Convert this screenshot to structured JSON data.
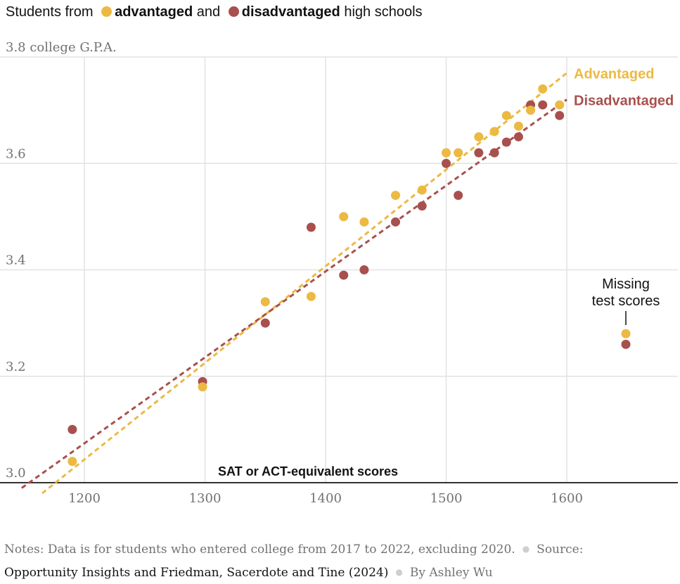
{
  "legend": {
    "prefix": "Students from",
    "adv_label": "advantaged",
    "mid": "and",
    "dis_label": "disadvantaged",
    "suffix": "high schools"
  },
  "notes": {
    "text": "Notes: Data is for students who entered college from 2017 to 2022, excluding 2020.",
    "source_label": "Source:",
    "source": "Opportunity Insights and Friedman, Sacerdote and Tine (2024)",
    "byline": "By Ashley Wu"
  },
  "colors": {
    "advantaged": "#ECB942",
    "disadvantaged": "#A8504E",
    "grid": "#e2e2e2",
    "axis": "#333333",
    "tick": "#727272"
  },
  "chart_data": {
    "type": "scatter",
    "xlabel": "SAT or ACT-equivalent scores",
    "ylabel": "college G.P.A.",
    "xlim": [
      1130,
      1690
    ],
    "ylim": [
      2.98,
      3.8
    ],
    "x_ticks": [
      1200,
      1300,
      1400,
      1500,
      1600
    ],
    "y_ticks": [
      3.0,
      3.2,
      3.4,
      3.6,
      3.8
    ],
    "grid": true,
    "series": [
      {
        "name": "Advantaged",
        "color": "#ECB942",
        "x": [
          1190,
          1298,
          1350,
          1388,
          1415,
          1432,
          1458,
          1480,
          1500,
          1510,
          1527,
          1540,
          1550,
          1560,
          1570,
          1580,
          1594
        ],
        "y": [
          3.04,
          3.18,
          3.34,
          3.35,
          3.5,
          3.49,
          3.54,
          3.55,
          3.62,
          3.62,
          3.65,
          3.66,
          3.69,
          3.67,
          3.7,
          3.74,
          3.71
        ],
        "trend": {
          "x": [
            1165,
            1600
          ],
          "y": [
            2.98,
            3.77
          ]
        }
      },
      {
        "name": "Disadvantaged",
        "color": "#A8504E",
        "x": [
          1190,
          1298,
          1350,
          1388,
          1415,
          1432,
          1458,
          1480,
          1500,
          1510,
          1527,
          1540,
          1550,
          1560,
          1570,
          1580,
          1594
        ],
        "y": [
          3.1,
          3.19,
          3.3,
          3.48,
          3.39,
          3.4,
          3.49,
          3.52,
          3.6,
          3.54,
          3.62,
          3.62,
          3.64,
          3.65,
          3.71,
          3.71,
          3.69
        ],
        "trend": {
          "x": [
            1148,
            1600
          ],
          "y": [
            2.99,
            3.72
          ]
        }
      }
    ],
    "missing": {
      "label_line1": "Missing",
      "label_line2": "test scores",
      "advantaged_y": 3.28,
      "disadvantaged_y": 3.26
    }
  }
}
